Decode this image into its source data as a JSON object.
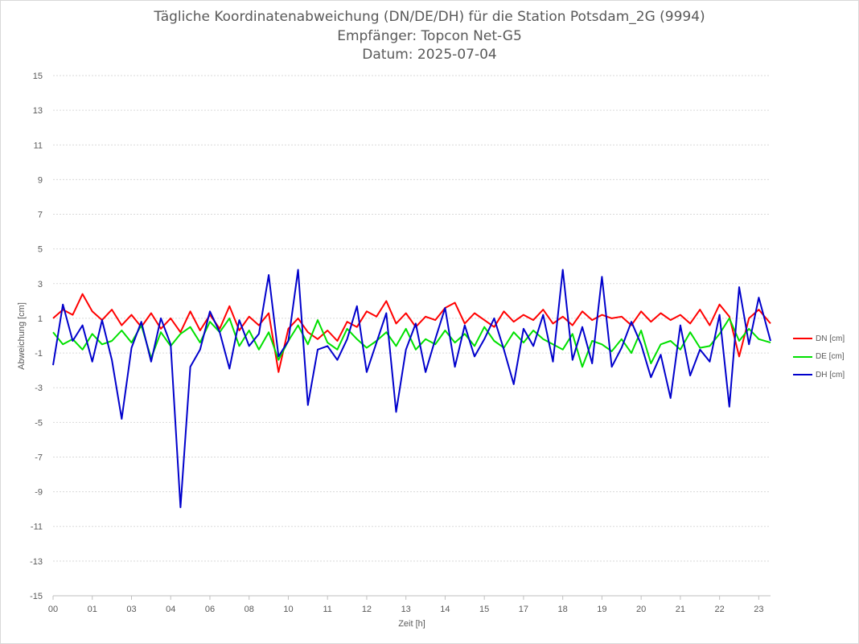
{
  "chart_data": {
    "type": "line",
    "title": "Tägliche Koordinatenabweichung (DN/DE/DH) für die Station Potsdam_2G (9994)",
    "subtitle1": "Empfänger: Topcon Net-G5",
    "subtitle2": "Datum: 2025-07-04",
    "xlabel": "Zeit [h]",
    "ylabel": "Abweichung [cm]",
    "ylim": [
      -15,
      15
    ],
    "yticks": [
      "15",
      "13",
      "11",
      "9",
      "7",
      "5",
      "3",
      "1",
      "-1",
      "-3",
      "-5",
      "-7",
      "-9",
      "-11",
      "-13",
      "-15"
    ],
    "xticks": [
      "00",
      "01",
      "03",
      "04",
      "06",
      "08",
      "10",
      "11",
      "12",
      "13",
      "14",
      "15",
      "17",
      "18",
      "19",
      "20",
      "21",
      "22",
      "23"
    ],
    "xtick_hours": [
      0,
      1,
      2,
      3,
      4,
      5,
      6,
      7,
      8,
      9,
      10,
      11,
      12,
      13,
      14,
      15,
      16,
      17,
      18
    ],
    "xlim_hours": [
      0,
      18.3
    ],
    "grid": "horizontal dotted",
    "legend": "right",
    "series": [
      {
        "name": "DN [cm]",
        "color": "#ff0000",
        "x": [
          0,
          0.25,
          0.5,
          0.75,
          1,
          1.25,
          1.5,
          1.75,
          2,
          2.25,
          2.5,
          2.75,
          3,
          3.25,
          3.5,
          3.75,
          4,
          4.25,
          4.5,
          4.75,
          5,
          5.25,
          5.5,
          5.75,
          6,
          6.25,
          6.5,
          6.75,
          7,
          7.25,
          7.5,
          7.75,
          8,
          8.25,
          8.5,
          8.75,
          9,
          9.25,
          9.5,
          9.75,
          10,
          10.25,
          10.5,
          10.75,
          11,
          11.25,
          11.5,
          11.75,
          12,
          12.25,
          12.5,
          12.75,
          13,
          13.25,
          13.5,
          13.75,
          14,
          14.25,
          14.5,
          14.75,
          15,
          15.25,
          15.5,
          15.75,
          16,
          16.25,
          16.5,
          16.75,
          17,
          17.25,
          17.5,
          17.75,
          18,
          18.3
        ],
        "values": [
          1.0,
          1.5,
          1.2,
          2.4,
          1.4,
          0.9,
          1.5,
          0.6,
          1.2,
          0.5,
          1.3,
          0.4,
          1.0,
          0.2,
          1.4,
          0.3,
          1.2,
          0.4,
          1.7,
          0.3,
          1.1,
          0.6,
          1.3,
          -2.1,
          0.4,
          1.0,
          0.2,
          -0.2,
          0.3,
          -0.3,
          0.8,
          0.5,
          1.4,
          1.1,
          2.0,
          0.7,
          1.3,
          0.5,
          1.1,
          0.9,
          1.6,
          1.9,
          0.7,
          1.3,
          0.9,
          0.5,
          1.4,
          0.8,
          1.2,
          0.9,
          1.5,
          0.7,
          1.1,
          0.6,
          1.4,
          0.9,
          1.2,
          1.0,
          1.1,
          0.6,
          1.4,
          0.8,
          1.3,
          0.9,
          1.2,
          0.7,
          1.5,
          0.6,
          1.8,
          1.1,
          -1.2,
          1.0,
          1.5,
          0.7
        ]
      },
      {
        "name": "DE [cm]",
        "color": "#00e000",
        "x": [
          0,
          0.25,
          0.5,
          0.75,
          1,
          1.25,
          1.5,
          1.75,
          2,
          2.25,
          2.5,
          2.75,
          3,
          3.25,
          3.5,
          3.75,
          4,
          4.25,
          4.5,
          4.75,
          5,
          5.25,
          5.5,
          5.75,
          6,
          6.25,
          6.5,
          6.75,
          7,
          7.25,
          7.5,
          7.75,
          8,
          8.25,
          8.5,
          8.75,
          9,
          9.25,
          9.5,
          9.75,
          10,
          10.25,
          10.5,
          10.75,
          11,
          11.25,
          11.5,
          11.75,
          12,
          12.25,
          12.5,
          12.75,
          13,
          13.25,
          13.5,
          13.75,
          14,
          14.25,
          14.5,
          14.75,
          15,
          15.25,
          15.5,
          15.75,
          16,
          16.25,
          16.5,
          16.75,
          17,
          17.25,
          17.5,
          17.75,
          18,
          18.3
        ],
        "values": [
          0.2,
          -0.5,
          -0.2,
          -0.8,
          0.1,
          -0.5,
          -0.3,
          0.3,
          -0.4,
          0.6,
          -1.3,
          0.2,
          -0.6,
          0.1,
          0.5,
          -0.4,
          0.8,
          0.2,
          1.0,
          -0.6,
          0.3,
          -0.8,
          0.2,
          -1.4,
          -0.3,
          0.6,
          -0.5,
          0.9,
          -0.4,
          -0.8,
          0.4,
          -0.2,
          -0.7,
          -0.3,
          0.2,
          -0.6,
          0.4,
          -0.8,
          -0.2,
          -0.5,
          0.3,
          -0.4,
          0.1,
          -0.6,
          0.5,
          -0.3,
          -0.7,
          0.2,
          -0.4,
          0.3,
          -0.2,
          -0.5,
          -0.8,
          0.1,
          -1.8,
          -0.3,
          -0.5,
          -0.9,
          -0.2,
          -1.0,
          0.3,
          -1.6,
          -0.5,
          -0.3,
          -0.8,
          0.2,
          -0.7,
          -0.6,
          0.1,
          1.0,
          -0.3,
          0.4,
          -0.2,
          -0.4
        ]
      },
      {
        "name": "DH [cm]",
        "color": "#0000cc",
        "x": [
          0,
          0.25,
          0.5,
          0.75,
          1,
          1.25,
          1.5,
          1.75,
          2,
          2.25,
          2.5,
          2.75,
          3,
          3.25,
          3.5,
          3.75,
          4,
          4.25,
          4.5,
          4.75,
          5,
          5.25,
          5.5,
          5.75,
          6,
          6.25,
          6.5,
          6.75,
          7,
          7.25,
          7.5,
          7.75,
          8,
          8.25,
          8.5,
          8.75,
          9,
          9.25,
          9.5,
          9.75,
          10,
          10.25,
          10.5,
          10.75,
          11,
          11.25,
          11.5,
          11.75,
          12,
          12.25,
          12.5,
          12.75,
          13,
          13.25,
          13.5,
          13.75,
          14,
          14.25,
          14.5,
          14.75,
          15,
          15.25,
          15.5,
          15.75,
          16,
          16.25,
          16.5,
          16.75,
          17,
          17.25,
          17.5,
          17.75,
          18,
          18.3
        ],
        "values": [
          -1.7,
          1.8,
          -0.3,
          0.6,
          -1.5,
          0.9,
          -1.4,
          -4.8,
          -0.7,
          0.8,
          -1.5,
          1.0,
          -0.5,
          -9.9,
          -1.8,
          -0.8,
          1.4,
          0.2,
          -1.9,
          0.9,
          -0.6,
          0.1,
          3.5,
          -1.2,
          -0.3,
          3.8,
          -4.0,
          -0.8,
          -0.6,
          -1.4,
          -0.2,
          1.7,
          -2.1,
          -0.4,
          1.3,
          -4.4,
          -0.8,
          0.7,
          -2.1,
          -0.2,
          1.6,
          -1.8,
          0.6,
          -1.2,
          -0.2,
          1.0,
          -0.8,
          -2.8,
          0.4,
          -0.6,
          1.2,
          -1.5,
          3.8,
          -1.4,
          0.5,
          -1.6,
          3.4,
          -1.8,
          -0.7,
          0.8,
          -0.5,
          -2.4,
          -1.1,
          -3.6,
          0.6,
          -2.3,
          -0.8,
          -1.5,
          1.2,
          -4.1,
          2.8,
          -0.5,
          2.2,
          -0.3
        ]
      }
    ]
  }
}
